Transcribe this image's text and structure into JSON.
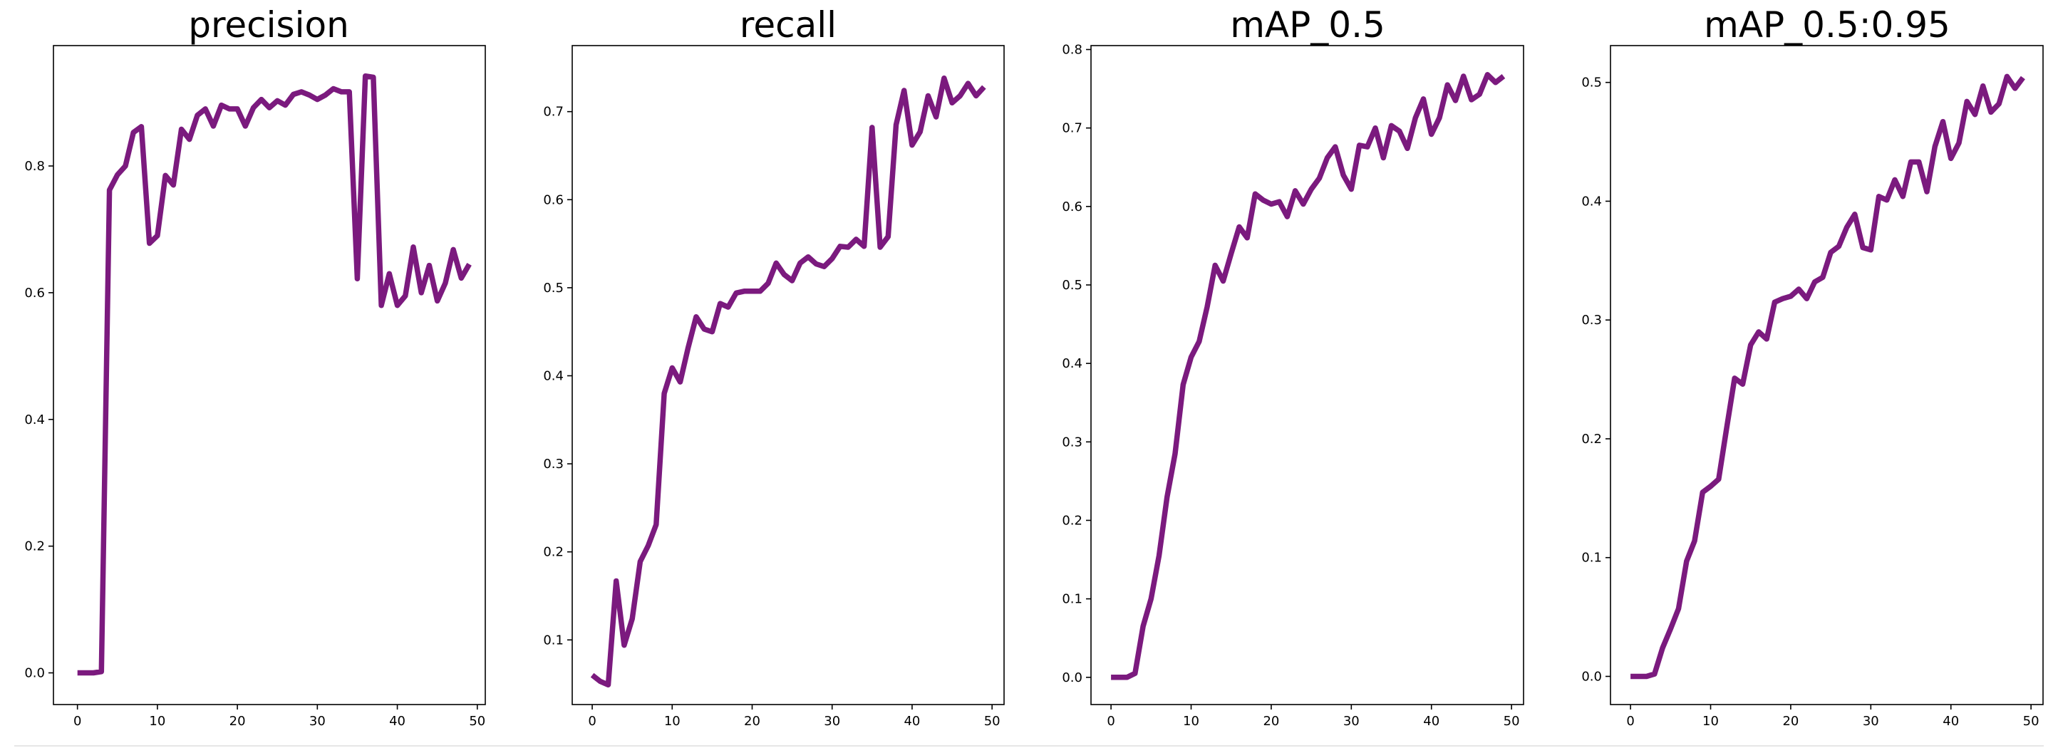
{
  "chart_data": [
    {
      "type": "line",
      "title": "precision",
      "xlabel": "",
      "ylabel": "",
      "xlim": [
        -3,
        51
      ],
      "ylim": [
        -0.05,
        0.99
      ],
      "xticks": [
        0,
        10,
        20,
        30,
        40,
        50
      ],
      "xtick_labels": [
        "0",
        "10",
        "20",
        "30",
        "40",
        "50"
      ],
      "yticks": [
        0.0,
        0.2,
        0.4,
        0.6,
        0.8
      ],
      "ytick_labels": [
        "0.0",
        "0.2",
        "0.4",
        "0.6",
        "0.8"
      ],
      "grid": false,
      "x": [
        0,
        1,
        2,
        3,
        4,
        5,
        6,
        7,
        8,
        9,
        10,
        11,
        12,
        13,
        14,
        15,
        16,
        17,
        18,
        19,
        20,
        21,
        22,
        23,
        24,
        25,
        26,
        27,
        28,
        29,
        30,
        31,
        32,
        33,
        34,
        35,
        36,
        37,
        38,
        39,
        40,
        41,
        42,
        43,
        44,
        45,
        46,
        47,
        48,
        49
      ],
      "series": [
        {
          "color": "#7b1a7e",
          "values": [
            0.0,
            0.0,
            0.0,
            0.002,
            0.762,
            0.786,
            0.8,
            0.853,
            0.862,
            0.678,
            0.69,
            0.785,
            0.77,
            0.858,
            0.842,
            0.88,
            0.89,
            0.863,
            0.896,
            0.89,
            0.89,
            0.863,
            0.892,
            0.905,
            0.892,
            0.903,
            0.896,
            0.913,
            0.917,
            0.912,
            0.905,
            0.912,
            0.922,
            0.917,
            0.917,
            0.622,
            0.942,
            0.94,
            0.58,
            0.63,
            0.58,
            0.595,
            0.672,
            0.6,
            0.643,
            0.587,
            0.615,
            0.668,
            0.623,
            0.645
          ]
        }
      ]
    },
    {
      "type": "line",
      "title": "recall",
      "xlabel": "",
      "ylabel": "",
      "xlim": [
        -2.5,
        51.5
      ],
      "ylim": [
        0.0266,
        0.775
      ],
      "xticks": [
        0,
        10,
        20,
        30,
        40,
        50
      ],
      "xtick_labels": [
        "0",
        "10",
        "20",
        "30",
        "40",
        "50"
      ],
      "yticks": [
        0.1,
        0.2,
        0.3,
        0.4,
        0.5,
        0.6,
        0.7
      ],
      "ytick_labels": [
        "0.1",
        "0.2",
        "0.3",
        "0.4",
        "0.5",
        "0.6",
        "0.7"
      ],
      "grid": false,
      "x": [
        0,
        1,
        2,
        3,
        4,
        5,
        6,
        7,
        8,
        9,
        10,
        11,
        12,
        13,
        14,
        15,
        16,
        17,
        18,
        19,
        20,
        21,
        22,
        23,
        24,
        25,
        26,
        27,
        28,
        29,
        30,
        31,
        32,
        33,
        34,
        35,
        36,
        37,
        38,
        39,
        40,
        41,
        42,
        43,
        44,
        45,
        46,
        47,
        48,
        49
      ],
      "series": [
        {
          "color": "#7b1a7e",
          "values": [
            0.06,
            0.053,
            0.049,
            0.167,
            0.094,
            0.124,
            0.189,
            0.207,
            0.231,
            0.38,
            0.409,
            0.393,
            0.432,
            0.467,
            0.453,
            0.45,
            0.482,
            0.478,
            0.494,
            0.496,
            0.496,
            0.496,
            0.505,
            0.528,
            0.515,
            0.508,
            0.528,
            0.535,
            0.527,
            0.524,
            0.533,
            0.547,
            0.546,
            0.555,
            0.547,
            0.682,
            0.546,
            0.558,
            0.685,
            0.724,
            0.662,
            0.677,
            0.718,
            0.694,
            0.738,
            0.71,
            0.718,
            0.732,
            0.718,
            0.728
          ]
        }
      ]
    },
    {
      "type": "line",
      "title": "mAP_0.5",
      "xlabel": "",
      "ylabel": "",
      "xlim": [
        -2.5,
        51.5
      ],
      "ylim": [
        -0.0347,
        0.805
      ],
      "xticks": [
        0,
        10,
        20,
        30,
        40,
        50
      ],
      "xtick_labels": [
        "0",
        "10",
        "20",
        "30",
        "40",
        "50"
      ],
      "yticks": [
        0.0,
        0.1,
        0.2,
        0.3,
        0.4,
        0.5,
        0.6,
        0.7,
        0.8
      ],
      "ytick_labels": [
        "0.0",
        "0.1",
        "0.2",
        "0.3",
        "0.4",
        "0.5",
        "0.6",
        "0.7",
        "0.8"
      ],
      "grid": false,
      "x": [
        0,
        1,
        2,
        3,
        4,
        5,
        6,
        7,
        8,
        9,
        10,
        11,
        12,
        13,
        14,
        15,
        16,
        17,
        18,
        19,
        20,
        21,
        22,
        23,
        24,
        25,
        26,
        27,
        28,
        29,
        30,
        31,
        32,
        33,
        34,
        35,
        36,
        37,
        38,
        39,
        40,
        41,
        42,
        43,
        44,
        45,
        46,
        47,
        48,
        49
      ],
      "series": [
        {
          "color": "#7b1a7e",
          "values": [
            0.0,
            0.0,
            0.0,
            0.005,
            0.065,
            0.1,
            0.155,
            0.23,
            0.285,
            0.373,
            0.408,
            0.428,
            0.472,
            0.525,
            0.505,
            0.54,
            0.574,
            0.56,
            0.616,
            0.608,
            0.603,
            0.606,
            0.587,
            0.62,
            0.603,
            0.622,
            0.636,
            0.662,
            0.676,
            0.64,
            0.622,
            0.678,
            0.676,
            0.7,
            0.662,
            0.703,
            0.696,
            0.674,
            0.713,
            0.737,
            0.692,
            0.713,
            0.755,
            0.735,
            0.766,
            0.736,
            0.743,
            0.768,
            0.758,
            0.766
          ]
        }
      ]
    },
    {
      "type": "line",
      "title": "mAP_0.5:0.95",
      "xlabel": "",
      "ylabel": "",
      "xlim": [
        -2.5,
        51.5
      ],
      "ylim": [
        -0.0237,
        0.531
      ],
      "xticks": [
        0,
        10,
        20,
        30,
        40,
        50
      ],
      "xtick_labels": [
        "0",
        "10",
        "20",
        "30",
        "40",
        "50"
      ],
      "yticks": [
        0.0,
        0.1,
        0.2,
        0.3,
        0.4,
        0.5
      ],
      "ytick_labels": [
        "0.0",
        "0.1",
        "0.2",
        "0.3",
        "0.4",
        "0.5"
      ],
      "grid": false,
      "x": [
        0,
        1,
        2,
        3,
        4,
        5,
        6,
        7,
        8,
        9,
        10,
        11,
        12,
        13,
        14,
        15,
        16,
        17,
        18,
        19,
        20,
        21,
        22,
        23,
        24,
        25,
        26,
        27,
        28,
        29,
        30,
        31,
        32,
        33,
        34,
        35,
        36,
        37,
        38,
        39,
        40,
        41,
        42,
        43,
        44,
        45,
        46,
        47,
        48,
        49
      ],
      "series": [
        {
          "color": "#7b1a7e",
          "values": [
            0.0,
            0.0,
            0.0,
            0.002,
            0.024,
            0.04,
            0.057,
            0.097,
            0.114,
            0.155,
            0.16,
            0.166,
            0.209,
            0.251,
            0.246,
            0.279,
            0.29,
            0.284,
            0.315,
            0.318,
            0.32,
            0.326,
            0.318,
            0.332,
            0.336,
            0.357,
            0.362,
            0.378,
            0.389,
            0.361,
            0.359,
            0.404,
            0.401,
            0.418,
            0.404,
            0.433,
            0.433,
            0.408,
            0.446,
            0.467,
            0.436,
            0.449,
            0.484,
            0.473,
            0.497,
            0.475,
            0.482,
            0.505,
            0.495,
            0.504
          ]
        }
      ]
    }
  ]
}
